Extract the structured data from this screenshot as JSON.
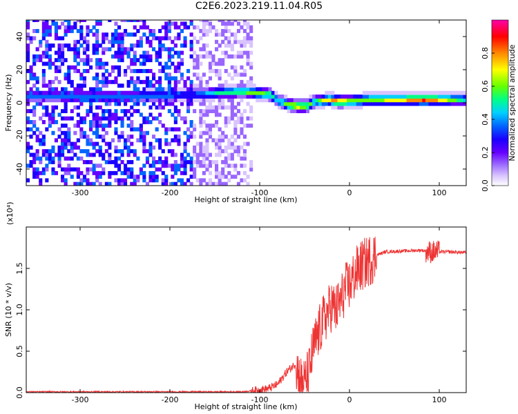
{
  "title": "C2E6.2023.219.11.04.R05",
  "colors": {
    "snr_line": "#ee3333",
    "spectrogram_palette": [
      "#ffffff",
      "#d9c4ff",
      "#9966ff",
      "#6600ff",
      "#1a00ff",
      "#0066ff",
      "#00d0ff",
      "#00ff88",
      "#66ff00",
      "#ffff00",
      "#ff8800",
      "#ff0000",
      "#ff00aa"
    ]
  },
  "chart_data": [
    {
      "type": "heatmap",
      "title": "",
      "xlabel": "Height of straight line (km)",
      "ylabel": "Frequency (Hz)",
      "xlim": [
        -360,
        130
      ],
      "ylim": [
        -50,
        50
      ],
      "xticks": [
        "-300",
        "-200",
        "-100",
        "0",
        "100"
      ],
      "yticks": [
        "-40",
        "-20",
        "0",
        "20",
        "40"
      ],
      "colorbar": {
        "label": "Normalized spectral amplitude",
        "range": [
          0,
          1
        ],
        "ticks": [
          "0.0",
          "0.2",
          "0.4",
          "0.6",
          "0.8"
        ]
      },
      "ridge_frequency": {
        "x": [
          -360,
          -330,
          -300,
          -260,
          -250,
          -175,
          -150,
          -120,
          -105,
          -90,
          -80,
          -70,
          -60,
          -50,
          -40,
          -35,
          -25,
          -15,
          -5,
          0,
          20,
          50,
          80,
          100,
          130
        ],
        "hz": [
          3,
          3,
          3,
          3,
          3,
          4,
          5,
          6,
          5,
          4,
          0,
          -2,
          -3,
          -3,
          0,
          0,
          1,
          0,
          0,
          0,
          1,
          1,
          1,
          1,
          1
        ]
      },
      "ridge_amplitude": {
        "x": [
          -350,
          -300,
          -260,
          -175,
          -150,
          -120,
          -100,
          -80,
          -60,
          -40,
          -20,
          0,
          30,
          60,
          80,
          100,
          130
        ],
        "values": [
          0.4,
          0.45,
          0.45,
          0.4,
          0.55,
          0.65,
          0.7,
          0.55,
          0.8,
          0.6,
          0.85,
          0.7,
          0.7,
          0.8,
          0.9,
          0.8,
          0.5
        ]
      }
    },
    {
      "type": "line",
      "title": "",
      "xlabel": "Height of straight line (km)",
      "ylabel": "SNR (10 * v/v)",
      "yscale_label": "(x10⁴)",
      "xlim": [
        -360,
        130
      ],
      "ylim": [
        0,
        2.0
      ],
      "xticks": [
        "-300",
        "-200",
        "-100",
        "0",
        "100"
      ],
      "yticks": [
        "0.0",
        "0.5",
        "1.0",
        "1.5"
      ],
      "series": [
        {
          "x": [
            -360,
            -300,
            -200,
            -120,
            -110,
            -100,
            -90,
            -80,
            -70,
            -60,
            -55,
            -50,
            -45,
            -40,
            -35,
            -30,
            -25,
            -20,
            -15,
            -10,
            -5,
            0,
            5,
            10,
            20,
            30,
            40,
            60,
            80,
            90,
            95,
            100,
            110,
            130
          ],
          "values": [
            0.01,
            0.01,
            0.01,
            0.01,
            0.02,
            0.03,
            0.05,
            0.1,
            0.25,
            0.35,
            0.15,
            0.1,
            0.25,
            0.55,
            0.7,
            0.85,
            0.95,
            1.05,
            1.0,
            1.1,
            1.25,
            1.3,
            1.4,
            1.5,
            1.58,
            1.66,
            1.7,
            1.71,
            1.72,
            1.7,
            1.7,
            1.7,
            1.7,
            1.69
          ]
        }
      ]
    }
  ]
}
